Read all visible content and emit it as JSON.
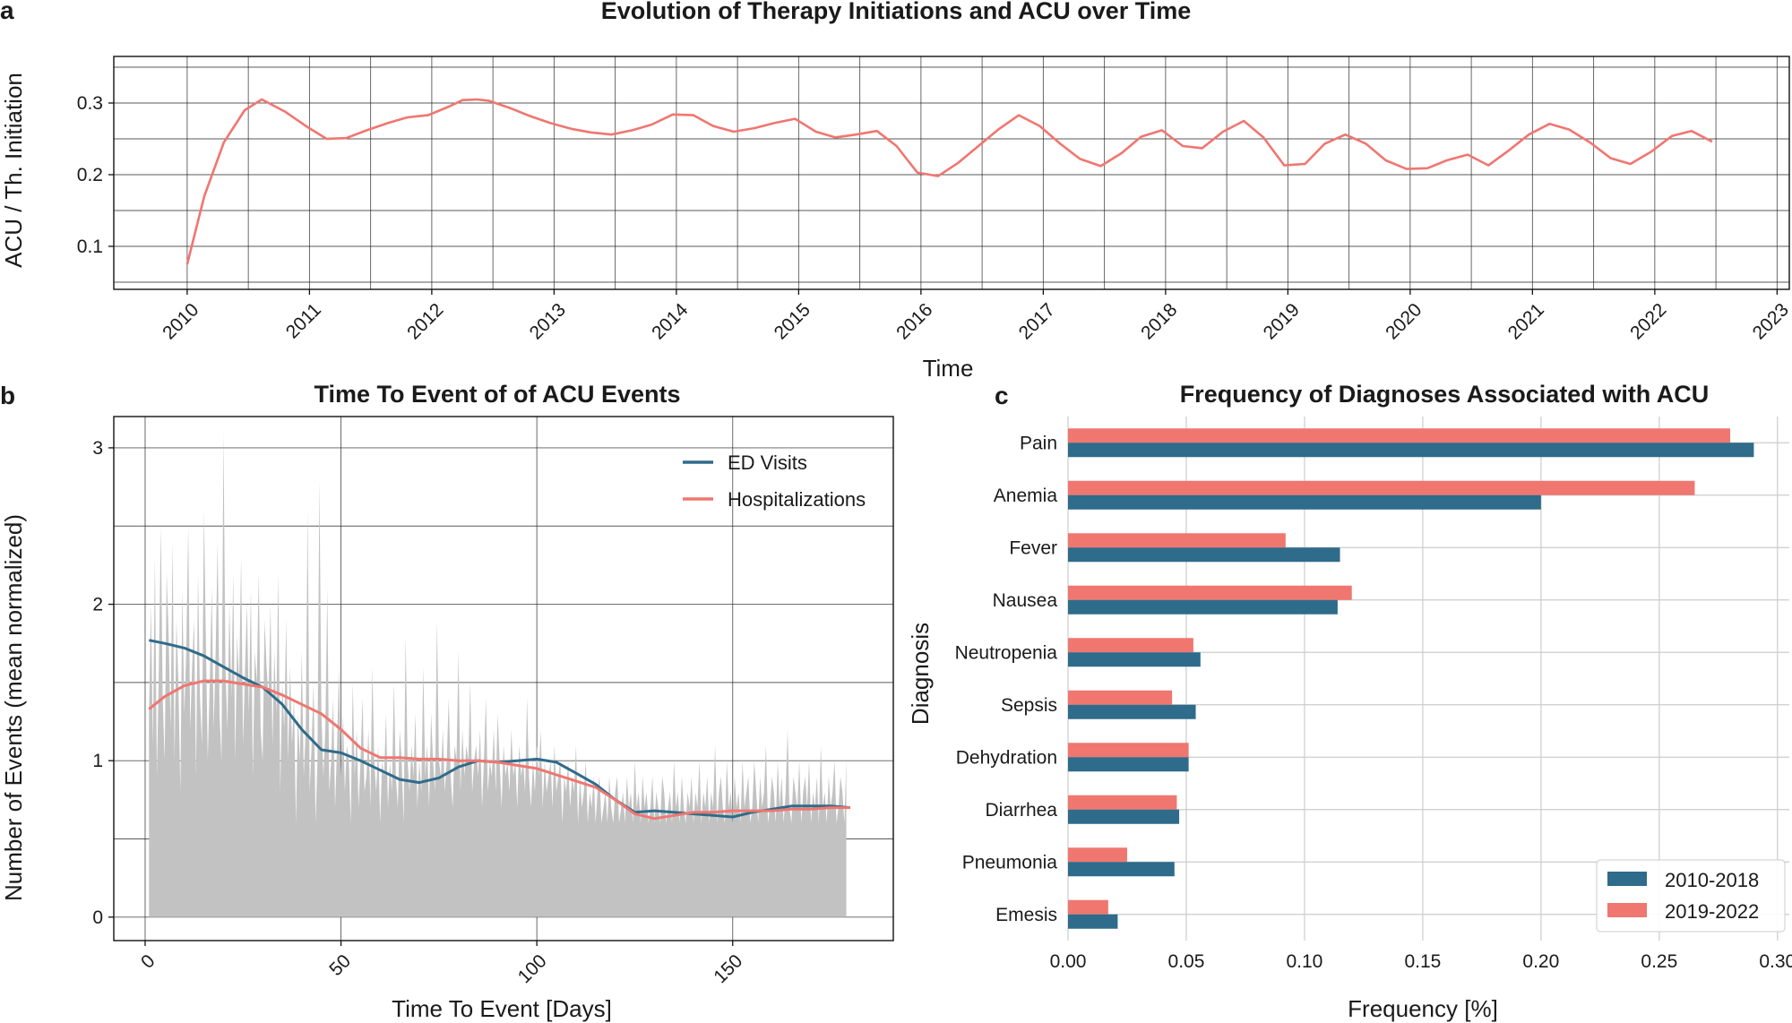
{
  "colors": {
    "blue": "#2f6b8a",
    "red": "#f07670",
    "gray": "#c2c2c2"
  },
  "panels": {
    "a": {
      "letter": "a",
      "xlabel": "Time"
    },
    "b": {
      "letter": "b"
    },
    "c": {
      "letter": "c"
    }
  },
  "chart_data": [
    {
      "id": "a",
      "type": "line",
      "title": "Evolution of Therapy Initiations and ACU over Time",
      "xlabel": "Time",
      "ylabel": "ACU / Th. Initiation",
      "xlim": [
        2009.4,
        2023.1
      ],
      "ylim": [
        0.04,
        0.365
      ],
      "yticks": [
        0.1,
        0.2,
        0.3
      ],
      "ytick_labels": [
        "0.1",
        "0.2",
        "0.3"
      ],
      "xticks": [
        2010,
        2011,
        2012,
        2013,
        2014,
        2015,
        2016,
        2017,
        2018,
        2019,
        2020,
        2021,
        2022,
        2023
      ],
      "xtick_labels": [
        "2010",
        "2011",
        "2012",
        "2013",
        "2014",
        "2015",
        "2016",
        "2017",
        "2018",
        "2019",
        "2020",
        "2021",
        "2022",
        "2023"
      ],
      "series": [
        {
          "name": "ACU / Th. Initiation",
          "color": "#f07670",
          "x": [
            2010.0,
            2010.14,
            2010.3,
            2010.47,
            2010.61,
            2010.8,
            2010.97,
            2011.14,
            2011.3,
            2011.47,
            2011.64,
            2011.8,
            2011.97,
            2012.14,
            2012.25,
            2012.37,
            2012.47,
            2012.64,
            2012.8,
            2012.97,
            2013.14,
            2013.3,
            2013.47,
            2013.64,
            2013.8,
            2013.97,
            2014.14,
            2014.3,
            2014.47,
            2014.64,
            2014.8,
            2014.97,
            2015.14,
            2015.3,
            2015.47,
            2015.64,
            2015.8,
            2015.97,
            2016.14,
            2016.3,
            2016.47,
            2016.64,
            2016.8,
            2016.97,
            2017.14,
            2017.3,
            2017.47,
            2017.64,
            2017.8,
            2017.97,
            2018.14,
            2018.3,
            2018.47,
            2018.64,
            2018.8,
            2018.97,
            2019.14,
            2019.3,
            2019.47,
            2019.64,
            2019.8,
            2019.97,
            2020.14,
            2020.3,
            2020.47,
            2020.64,
            2020.8,
            2020.97,
            2021.14,
            2021.3,
            2021.47,
            2021.64,
            2021.8,
            2021.97,
            2022.14,
            2022.3,
            2022.47
          ],
          "y": [
            0.075,
            0.17,
            0.245,
            0.29,
            0.305,
            0.288,
            0.268,
            0.25,
            0.251,
            0.262,
            0.272,
            0.28,
            0.283,
            0.295,
            0.304,
            0.305,
            0.303,
            0.293,
            0.282,
            0.272,
            0.264,
            0.259,
            0.256,
            0.262,
            0.27,
            0.284,
            0.283,
            0.268,
            0.26,
            0.265,
            0.272,
            0.278,
            0.26,
            0.252,
            0.256,
            0.261,
            0.24,
            0.203,
            0.198,
            0.216,
            0.24,
            0.264,
            0.283,
            0.268,
            0.243,
            0.222,
            0.212,
            0.23,
            0.253,
            0.262,
            0.24,
            0.237,
            0.26,
            0.275,
            0.252,
            0.213,
            0.215,
            0.243,
            0.256,
            0.243,
            0.22,
            0.208,
            0.209,
            0.22,
            0.228,
            0.213,
            0.233,
            0.256,
            0.271,
            0.263,
            0.245,
            0.223,
            0.215,
            0.232,
            0.254,
            0.261,
            0.246
          ]
        }
      ]
    },
    {
      "id": "b",
      "type": "area",
      "title": "Time To Event of of ACU Events",
      "xlabel": "Time To Event [Days]",
      "ylabel": "Number of Events (mean normalized)",
      "xlim": [
        -8,
        191
      ],
      "ylim": [
        -0.15,
        3.2
      ],
      "xticks": [
        0,
        50,
        100,
        150
      ],
      "xtick_labels": [
        "0",
        "50",
        "100",
        "150"
      ],
      "yticks": [
        0,
        1,
        2,
        3
      ],
      "ytick_labels": [
        "0",
        "1",
        "2",
        "3"
      ],
      "legend": [
        "ED Visits",
        "Hospitalizations"
      ],
      "legend_position": "top-right",
      "series": [
        {
          "name": "ED Visits",
          "color": "#2f6b8a",
          "x": [
            1,
            5,
            10,
            15,
            20,
            25,
            30,
            35,
            40,
            45,
            50,
            55,
            60,
            65,
            70,
            75,
            80,
            85,
            90,
            95,
            100,
            105,
            110,
            115,
            120,
            125,
            130,
            135,
            140,
            145,
            150,
            155,
            160,
            165,
            170,
            175,
            180
          ],
          "y": [
            1.77,
            1.75,
            1.72,
            1.67,
            1.6,
            1.53,
            1.47,
            1.36,
            1.2,
            1.07,
            1.05,
            1.0,
            0.94,
            0.88,
            0.86,
            0.89,
            0.96,
            1.0,
            0.99,
            1.0,
            1.01,
            0.99,
            0.92,
            0.85,
            0.75,
            0.67,
            0.68,
            0.67,
            0.66,
            0.65,
            0.64,
            0.67,
            0.69,
            0.71,
            0.71,
            0.71,
            0.7
          ]
        },
        {
          "name": "Hospitalizations",
          "color": "#f07670",
          "x": [
            1,
            5,
            10,
            15,
            20,
            25,
            30,
            35,
            40,
            45,
            50,
            55,
            60,
            65,
            70,
            75,
            80,
            85,
            90,
            95,
            100,
            105,
            110,
            115,
            120,
            125,
            130,
            135,
            140,
            145,
            150,
            155,
            160,
            165,
            170,
            175,
            180
          ],
          "y": [
            1.33,
            1.41,
            1.48,
            1.51,
            1.51,
            1.49,
            1.47,
            1.42,
            1.36,
            1.3,
            1.2,
            1.08,
            1.02,
            1.02,
            1.01,
            1.01,
            1.0,
            1.0,
            0.99,
            0.97,
            0.95,
            0.91,
            0.87,
            0.83,
            0.75,
            0.66,
            0.63,
            0.65,
            0.67,
            0.67,
            0.68,
            0.68,
            0.68,
            0.69,
            0.69,
            0.7,
            0.7
          ]
        },
        {
          "name": "Daily events",
          "color": "#c2c2c2",
          "x_start": 1,
          "x_step": 0.5,
          "values": [
            1.3,
            2.0,
            1.1,
            2.3,
            0.9,
            1.6,
            2.5,
            1.4,
            1.0,
            2.2,
            1.8,
            1.2,
            2.4,
            1.0,
            1.9,
            1.5,
            0.8,
            2.1,
            1.3,
            1.7,
            2.5,
            1.2,
            1.6,
            1.9,
            0.9,
            2.2,
            1.4,
            1.1,
            2.6,
            1.8,
            1.0,
            1.5,
            2.1,
            1.2,
            1.7,
            2.4,
            1.3,
            1.0,
            3.1,
            1.6,
            1.2,
            2.0,
            1.4,
            2.2,
            1.0,
            1.8,
            1.5,
            2.3,
            1.1,
            1.6,
            2.0,
            1.3,
            2.1,
            0.9,
            1.7,
            1.5,
            2.2,
            1.2,
            1.0,
            1.9,
            1.6,
            1.4,
            2.0,
            1.1,
            1.7,
            1.3,
            2.2,
            0.8,
            1.5,
            1.2,
            1.9,
            1.0,
            1.6,
            1.1,
            1.4,
            0.6,
            1.3,
            1.0,
            1.7,
            0.9,
            1.2,
            2.6,
            0.8,
            1.1,
            1.5,
            0.6,
            1.0,
            2.8,
            1.3,
            0.9,
            1.2,
            2.1,
            0.8,
            1.0,
            1.4,
            0.7,
            1.1,
            1.6,
            0.9,
            1.3,
            0.8,
            1.1,
            1.0,
            0.6,
            1.5,
            0.9,
            1.2,
            0.7,
            1.0,
            1.4,
            0.8,
            0.9,
            1.2,
            0.7,
            1.6,
            1.0,
            0.8,
            1.1,
            0.6,
            1.0,
            0.9,
            1.3,
            0.7,
            1.0,
            0.8,
            1.5,
            0.9,
            0.7,
            1.2,
            1.0,
            0.6,
            1.8,
            1.0,
            0.8,
            1.1,
            0.9,
            1.3,
            0.7,
            1.0,
            0.8,
            1.6,
            0.9,
            1.1,
            0.7,
            1.3,
            1.0,
            0.8,
            1.9,
            1.0,
            0.9,
            1.2,
            0.8,
            1.0,
            1.4,
            0.9,
            0.7,
            1.1,
            1.0,
            1.7,
            0.8,
            1.2,
            0.9,
            1.1,
            1.0,
            1.5,
            0.8,
            1.0,
            1.1,
            0.9,
            1.2,
            0.7,
            1.0,
            1.4,
            0.8,
            1.0,
            0.9,
            1.2,
            0.8,
            1.3,
            1.0,
            0.7,
            1.1,
            0.9,
            1.0,
            0.8,
            1.2,
            0.9,
            1.0,
            0.7,
            1.1,
            0.9,
            1.0,
            0.8,
            1.4,
            0.9,
            0.7,
            1.0,
            0.8,
            1.1,
            0.9,
            1.2,
            0.7,
            1.0,
            0.8,
            0.9,
            1.0,
            0.7,
            1.1,
            0.8,
            0.9,
            1.0,
            0.6,
            0.9,
            0.8,
            1.0,
            0.7,
            0.9,
            0.8,
            1.1,
            0.6,
            0.9,
            0.7,
            0.8,
            1.0,
            0.6,
            0.8,
            0.7,
            0.9,
            0.6,
            0.8,
            0.9,
            0.6,
            0.7,
            0.8,
            0.6,
            0.9,
            0.7,
            0.6,
            0.8,
            0.9,
            0.6,
            0.7,
            0.8,
            0.6,
            0.9,
            0.7,
            0.8,
            0.6,
            1.0,
            0.7,
            0.8,
            0.6,
            0.9,
            0.7,
            0.8,
            0.6,
            0.7,
            0.9,
            0.6,
            0.8,
            0.7,
            0.6,
            0.9,
            0.8,
            0.6,
            0.7,
            0.8,
            0.6,
            1.0,
            0.7,
            0.8,
            0.6,
            0.9,
            0.7,
            0.6,
            0.8,
            0.7,
            0.9,
            0.6,
            0.8,
            0.7,
            1.0,
            0.6,
            0.8,
            0.7,
            0.9,
            0.6,
            0.8,
            0.7,
            1.1,
            0.6,
            0.8,
            0.9,
            0.7,
            0.6,
            1.0,
            0.7,
            0.8,
            0.6,
            0.9,
            0.7,
            0.8,
            0.6,
            1.0,
            0.7,
            0.8,
            0.9,
            0.6,
            0.7,
            1.0,
            0.8,
            0.6,
            0.9,
            0.7,
            0.8,
            1.1,
            0.6,
            0.7,
            0.9,
            0.8,
            0.6,
            1.0,
            0.7,
            0.9,
            0.6,
            0.8,
            1.2,
            0.7,
            0.6,
            0.9,
            0.8,
            0.7,
            1.0,
            0.6,
            0.8,
            0.9,
            0.7,
            1.0,
            0.6,
            0.8,
            0.7,
            0.9,
            0.6,
            1.1,
            0.7,
            0.8,
            0.6,
            0.9,
            0.7,
            0.8,
            1.0,
            0.6,
            0.7,
            0.9,
            0.8,
            0.6,
            1.0
          ]
        }
      ]
    },
    {
      "id": "c",
      "type": "bar",
      "orientation": "horizontal",
      "title": "Frequency of Diagnoses Associated with ACU",
      "xlabel": "Frequency [%]",
      "ylabel": "Diagnosis",
      "xlim": [
        0.0,
        0.305
      ],
      "xticks": [
        0.0,
        0.05,
        0.1,
        0.15,
        0.2,
        0.25,
        0.3
      ],
      "xtick_labels": [
        "0.00",
        "0.05",
        "0.10",
        "0.15",
        "0.20",
        "0.25",
        "0.30"
      ],
      "categories": [
        "Pain",
        "Anemia",
        "Fever",
        "Nausea",
        "Neutropenia",
        "Sepsis",
        "Dehydration",
        "Diarrhea",
        "Pneumonia",
        "Emesis"
      ],
      "legend_position": "bottom-right",
      "series": [
        {
          "name": "2010-2018",
          "color": "#2f6b8a",
          "values": [
            0.29,
            0.2,
            0.115,
            0.114,
            0.056,
            0.054,
            0.051,
            0.047,
            0.045,
            0.021
          ]
        },
        {
          "name": "2019-2022",
          "color": "#f07670",
          "values": [
            0.28,
            0.265,
            0.092,
            0.12,
            0.053,
            0.044,
            0.051,
            0.046,
            0.025,
            0.017
          ]
        }
      ]
    }
  ]
}
